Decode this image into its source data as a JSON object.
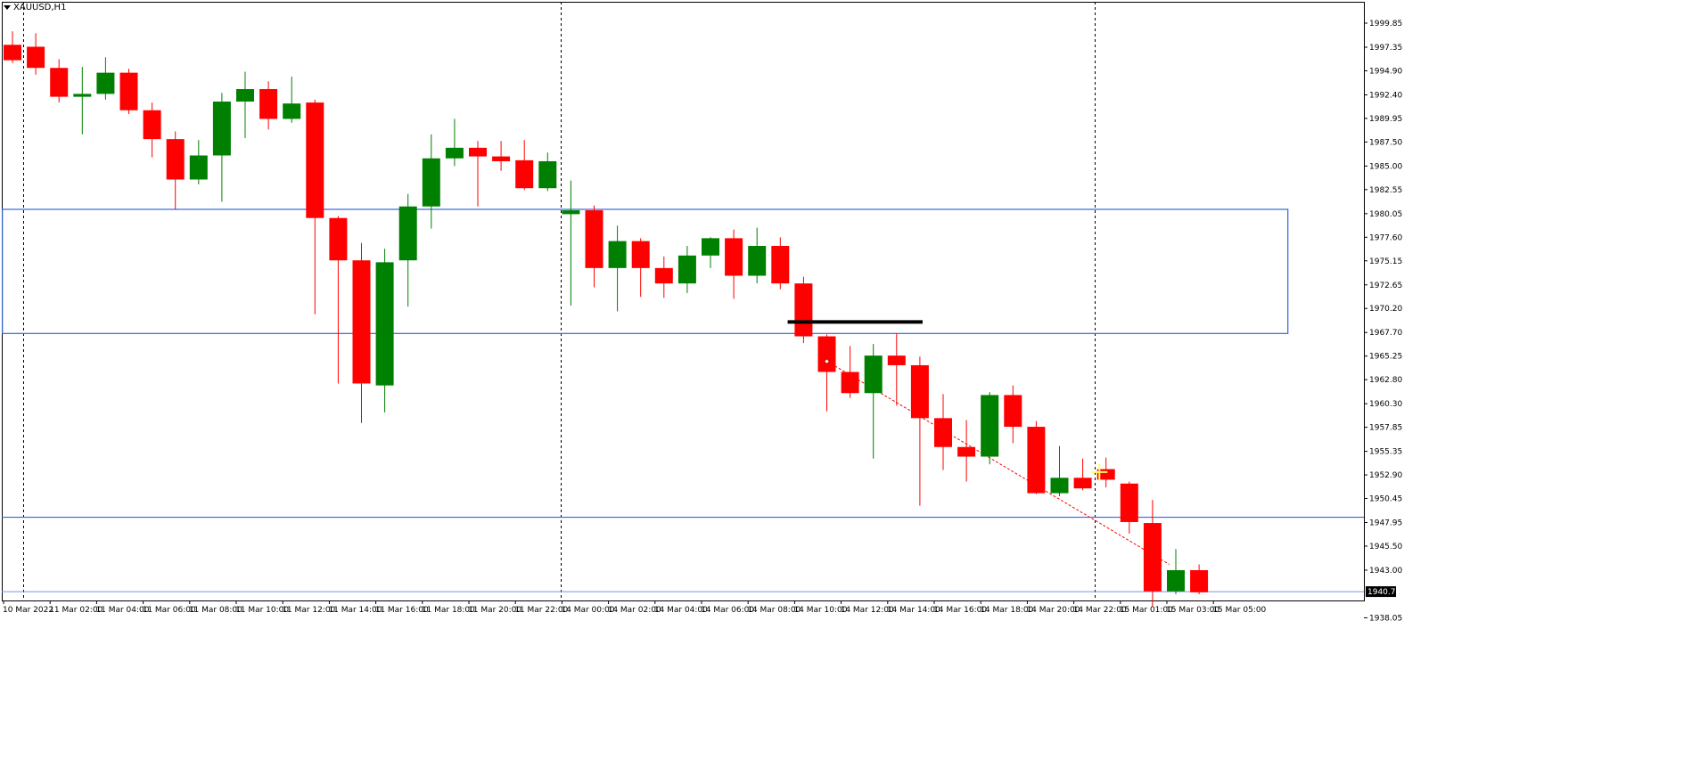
{
  "window": {
    "symbol_label": "XAUUSD,H1"
  },
  "colors": {
    "bull": "#008000",
    "bear": "#ff0000",
    "zone": "#3366dd",
    "trend": "#ff0000",
    "marker": "#000000",
    "crosshair": "#ffff66"
  },
  "chart_data": {
    "type": "candlestick",
    "symbol": "XAUUSD",
    "timeframe": "H1",
    "y_ticks": [
      "1999.85",
      "1997.35",
      "1994.90",
      "1992.40",
      "1989.95",
      "1987.50",
      "1985.00",
      "1982.55",
      "1980.05",
      "1977.60",
      "1975.15",
      "1972.65",
      "1970.20",
      "1967.70",
      "1965.25",
      "1962.80",
      "1960.30",
      "1957.85",
      "1955.35",
      "1952.90",
      "1950.45",
      "1947.95",
      "1945.50",
      "1943.00",
      "1938.05"
    ],
    "current_price": "1940.77",
    "x_labels": [
      "10 Mar 2022",
      "11 Mar 02:00",
      "11 Mar 04:00",
      "11 Mar 06:00",
      "11 Mar 08:00",
      "11 Mar 10:00",
      "11 Mar 12:00",
      "11 Mar 14:00",
      "11 Mar 16:00",
      "11 Mar 18:00",
      "11 Mar 20:00",
      "11 Mar 22:00",
      "14 Mar 00:00",
      "14 Mar 02:00",
      "14 Mar 04:00",
      "14 Mar 06:00",
      "14 Mar 08:00",
      "14 Mar 10:00",
      "14 Mar 12:00",
      "14 Mar 14:00",
      "14 Mar 16:00",
      "14 Mar 18:00",
      "14 Mar 20:00",
      "14 Mar 22:00",
      "15 Mar 01:00",
      "15 Mar 03:00",
      "15 Mar 05:00"
    ],
    "candles": [
      {
        "o": 1997.6,
        "h": 1999.0,
        "l": 1995.7,
        "c": 1996.0
      },
      {
        "o": 1997.4,
        "h": 1998.8,
        "l": 1994.5,
        "c": 1995.2
      },
      {
        "o": 1995.2,
        "h": 1996.1,
        "l": 1991.6,
        "c": 1992.2
      },
      {
        "o": 1992.2,
        "h": 1995.3,
        "l": 1988.3,
        "c": 1992.5
      },
      {
        "o": 1992.5,
        "h": 1996.3,
        "l": 1991.9,
        "c": 1994.7
      },
      {
        "o": 1994.7,
        "h": 1995.1,
        "l": 1990.4,
        "c": 1990.8
      },
      {
        "o": 1990.8,
        "h": 1991.6,
        "l": 1985.9,
        "c": 1987.8
      },
      {
        "o": 1987.8,
        "h": 1988.6,
        "l": 1980.5,
        "c": 1983.6
      },
      {
        "o": 1983.6,
        "h": 1987.7,
        "l": 1983.1,
        "c": 1986.1
      },
      {
        "o": 1986.1,
        "h": 1992.6,
        "l": 1981.3,
        "c": 1991.7
      },
      {
        "o": 1991.7,
        "h": 1994.8,
        "l": 1987.9,
        "c": 1993.0
      },
      {
        "o": 1993.0,
        "h": 1993.8,
        "l": 1988.8,
        "c": 1989.9
      },
      {
        "o": 1989.9,
        "h": 1994.3,
        "l": 1989.5,
        "c": 1991.5
      },
      {
        "o": 1991.6,
        "h": 1991.9,
        "l": 1969.6,
        "c": 1979.6
      },
      {
        "o": 1979.6,
        "h": 1979.8,
        "l": 1962.4,
        "c": 1975.2
      },
      {
        "o": 1975.2,
        "h": 1977.0,
        "l": 1958.3,
        "c": 1962.4
      },
      {
        "o": 1962.2,
        "h": 1976.4,
        "l": 1959.4,
        "c": 1975.0
      },
      {
        "o": 1975.2,
        "h": 1982.1,
        "l": 1970.4,
        "c": 1980.8
      },
      {
        "o": 1980.8,
        "h": 1988.3,
        "l": 1978.5,
        "c": 1985.8
      },
      {
        "o": 1985.8,
        "h": 1989.9,
        "l": 1985.0,
        "c": 1986.9
      },
      {
        "o": 1986.9,
        "h": 1987.6,
        "l": 1980.8,
        "c": 1986.0
      },
      {
        "o": 1986.0,
        "h": 1987.6,
        "l": 1984.5,
        "c": 1985.5
      },
      {
        "o": 1985.6,
        "h": 1987.7,
        "l": 1982.5,
        "c": 1982.7
      },
      {
        "o": 1982.7,
        "h": 1986.4,
        "l": 1982.4,
        "c": 1985.5
      },
      {
        "o": 1980.0,
        "h": 1983.5,
        "l": 1970.5,
        "c": 1980.4
      },
      {
        "o": 1980.4,
        "h": 1980.9,
        "l": 1972.4,
        "c": 1974.4
      },
      {
        "o": 1974.4,
        "h": 1978.8,
        "l": 1969.9,
        "c": 1977.2
      },
      {
        "o": 1977.2,
        "h": 1977.5,
        "l": 1971.4,
        "c": 1974.4
      },
      {
        "o": 1974.4,
        "h": 1975.6,
        "l": 1971.3,
        "c": 1972.8
      },
      {
        "o": 1972.8,
        "h": 1976.7,
        "l": 1971.8,
        "c": 1975.7
      },
      {
        "o": 1975.7,
        "h": 1977.6,
        "l": 1974.4,
        "c": 1977.5
      },
      {
        "o": 1977.5,
        "h": 1978.4,
        "l": 1971.2,
        "c": 1973.6
      },
      {
        "o": 1973.6,
        "h": 1978.6,
        "l": 1972.8,
        "c": 1976.7
      },
      {
        "o": 1976.7,
        "h": 1977.6,
        "l": 1972.2,
        "c": 1972.8
      },
      {
        "o": 1972.8,
        "h": 1973.5,
        "l": 1966.6,
        "c": 1967.3
      },
      {
        "o": 1967.3,
        "h": 1967.5,
        "l": 1959.5,
        "c": 1963.6
      },
      {
        "o": 1963.6,
        "h": 1966.3,
        "l": 1960.9,
        "c": 1961.4
      },
      {
        "o": 1961.4,
        "h": 1966.5,
        "l": 1954.6,
        "c": 1965.3
      },
      {
        "o": 1965.3,
        "h": 1967.6,
        "l": 1960.1,
        "c": 1964.3
      },
      {
        "o": 1964.3,
        "h": 1965.2,
        "l": 1949.7,
        "c": 1958.8
      },
      {
        "o": 1958.8,
        "h": 1961.3,
        "l": 1953.4,
        "c": 1955.8
      },
      {
        "o": 1955.8,
        "h": 1958.6,
        "l": 1952.2,
        "c": 1954.8
      },
      {
        "o": 1954.8,
        "h": 1961.5,
        "l": 1954.0,
        "c": 1961.2
      },
      {
        "o": 1961.2,
        "h": 1962.2,
        "l": 1956.2,
        "c": 1957.9
      },
      {
        "o": 1957.9,
        "h": 1958.5,
        "l": 1950.9,
        "c": 1951.0
      },
      {
        "o": 1951.0,
        "h": 1955.9,
        "l": 1950.7,
        "c": 1952.6
      },
      {
        "o": 1952.6,
        "h": 1954.6,
        "l": 1951.3,
        "c": 1951.5
      },
      {
        "o": 1953.5,
        "h": 1954.7,
        "l": 1951.6,
        "c": 1952.4
      },
      {
        "o": 1952.0,
        "h": 1952.2,
        "l": 1946.8,
        "c": 1948.0
      },
      {
        "o": 1947.9,
        "h": 1950.3,
        "l": 1939.2,
        "c": 1940.8
      },
      {
        "o": 1940.8,
        "h": 1945.2,
        "l": 1940.5,
        "c": 1943.0
      },
      {
        "o": 1943.0,
        "h": 1943.6,
        "l": 1940.5,
        "c": 1940.7
      }
    ],
    "zone": {
      "from_time_index": -0.05,
      "to_time_index": 55.2,
      "price_top": 1980.5,
      "price_bottom": 1967.6
    },
    "horizontal_line": 1948.5,
    "marker_line": {
      "from_time_index": 33.7,
      "to_time_index": 39.5,
      "price": 1968.8
    },
    "trendline": {
      "from_time_index": 35.4,
      "from_price": 1964.7,
      "to_time_index": 50.1,
      "to_price": 1943.6
    },
    "period_separators_time_index": [
      0.85,
      23.95,
      46.9
    ]
  }
}
